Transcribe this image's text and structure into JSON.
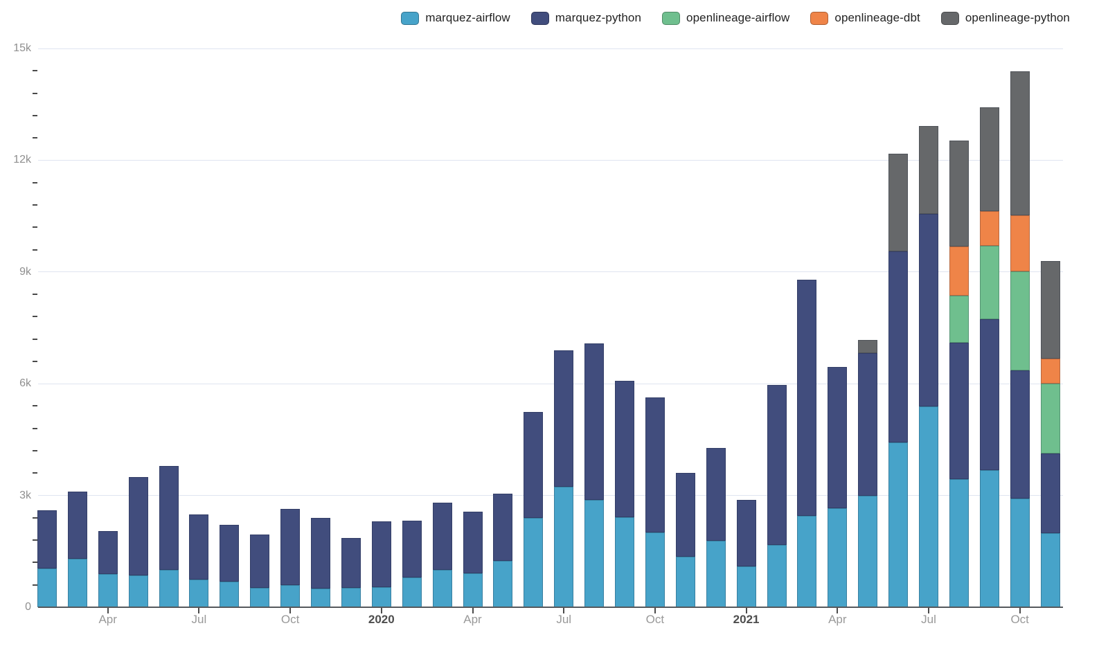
{
  "chart_data": {
    "type": "bar",
    "stacked": true,
    "title": "",
    "grid": true,
    "legend_position": "top-right",
    "ylim": [
      0,
      15000
    ],
    "y_ticks": [
      {
        "value": 0,
        "label": "0"
      },
      {
        "value": 3000,
        "label": "3k"
      },
      {
        "value": 6000,
        "label": "6k"
      },
      {
        "value": 9000,
        "label": "9k"
      },
      {
        "value": 12000,
        "label": "12k"
      },
      {
        "value": 15000,
        "label": "15k"
      }
    ],
    "y_minor_tick_step": 600,
    "categories": [
      "Feb 2019",
      "Mar 2019",
      "Apr 2019",
      "May 2019",
      "Jun 2019",
      "Jul 2019",
      "Aug 2019",
      "Sep 2019",
      "Oct 2019",
      "Nov 2019",
      "Dec 2019",
      "Jan 2020",
      "Feb 2020",
      "Mar 2020",
      "Apr 2020",
      "May 2020",
      "Jun 2020",
      "Jul 2020",
      "Aug 2020",
      "Sep 2020",
      "Oct 2020",
      "Nov 2020",
      "Dec 2020",
      "Jan 2021",
      "Feb 2021",
      "Mar 2021",
      "Apr 2021",
      "May 2021",
      "Jun 2021",
      "Jul 2021",
      "Aug 2021",
      "Sep 2021",
      "Oct 2021",
      "Nov 2021"
    ],
    "x_ticks": [
      {
        "index": 2,
        "label": "Apr",
        "bold": false
      },
      {
        "index": 5,
        "label": "Jul",
        "bold": false
      },
      {
        "index": 8,
        "label": "Oct",
        "bold": false
      },
      {
        "index": 11,
        "label": "2020",
        "bold": true
      },
      {
        "index": 14,
        "label": "Apr",
        "bold": false
      },
      {
        "index": 17,
        "label": "Jul",
        "bold": false
      },
      {
        "index": 20,
        "label": "Oct",
        "bold": false
      },
      {
        "index": 23,
        "label": "2021",
        "bold": true
      },
      {
        "index": 26,
        "label": "Apr",
        "bold": false
      },
      {
        "index": 29,
        "label": "Jul",
        "bold": false
      },
      {
        "index": 32,
        "label": "Oct",
        "bold": false
      }
    ],
    "series": [
      {
        "name": "marquez-airflow",
        "color": "#47a3c9",
        "values": [
          1050,
          1300,
          900,
          850,
          1000,
          750,
          680,
          530,
          600,
          500,
          530,
          540,
          800,
          1000,
          920,
          1240,
          2400,
          3240,
          2890,
          2420,
          2010,
          1360,
          1780,
          1090,
          1680,
          2460,
          2650,
          3000,
          4420,
          5390,
          3440,
          3680,
          2920,
          1980
        ]
      },
      {
        "name": "marquez-python",
        "color": "#414d7d",
        "values": [
          1550,
          1800,
          1150,
          2650,
          2800,
          1750,
          1530,
          1420,
          2040,
          1900,
          1320,
          1760,
          1520,
          1800,
          1640,
          1800,
          2850,
          3650,
          4200,
          3660,
          3630,
          2240,
          2500,
          1790,
          4290,
          6340,
          3800,
          3830,
          5130,
          5170,
          3660,
          4050,
          3440,
          2150
        ]
      },
      {
        "name": "openlineage-airflow",
        "color": "#6fbf8e",
        "values": [
          0,
          0,
          0,
          0,
          0,
          0,
          0,
          0,
          0,
          0,
          0,
          0,
          0,
          0,
          0,
          0,
          0,
          0,
          0,
          0,
          0,
          0,
          0,
          0,
          0,
          0,
          0,
          0,
          0,
          0,
          1270,
          1980,
          2650,
          1870
        ]
      },
      {
        "name": "openlineage-dbt",
        "color": "#ef8448",
        "values": [
          0,
          0,
          0,
          0,
          0,
          0,
          0,
          0,
          0,
          0,
          0,
          0,
          0,
          0,
          0,
          0,
          0,
          0,
          0,
          0,
          0,
          0,
          0,
          0,
          0,
          0,
          0,
          0,
          0,
          0,
          1310,
          920,
          1520,
          680
        ]
      },
      {
        "name": "openlineage-python",
        "color": "#66686a",
        "values": [
          0,
          0,
          0,
          0,
          0,
          0,
          0,
          0,
          0,
          0,
          0,
          0,
          0,
          0,
          0,
          0,
          0,
          0,
          0,
          0,
          0,
          0,
          0,
          0,
          0,
          0,
          0,
          350,
          2620,
          2350,
          2840,
          2790,
          3850,
          2620
        ]
      }
    ]
  }
}
